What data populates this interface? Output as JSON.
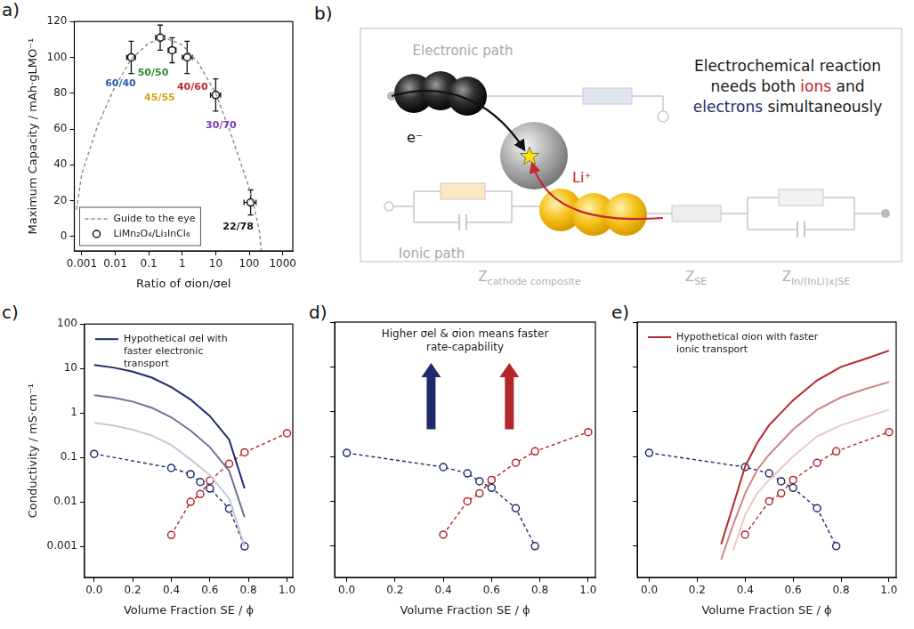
{
  "chart_data": [
    {
      "panel_label": "a)",
      "type": "scatter",
      "log": "x",
      "x_label": "Ratio of σion/σel",
      "y_label": "Maximum Capacity / mAh·gLMO⁻¹",
      "xlim": [
        0.0006,
        2000
      ],
      "xticks": [
        0.001,
        0.01,
        0.1,
        1,
        10,
        100,
        1000
      ],
      "ylim": [
        -8,
        120
      ],
      "yticks": [
        0,
        20,
        40,
        60,
        80,
        100,
        120
      ],
      "grid": false,
      "legend": "lower left",
      "series": [
        {
          "name": "Guide to the eye",
          "type": "line",
          "line_style": "dashed",
          "color": "#8a8a8a",
          "x": [
            0.0007,
            0.001,
            0.003,
            0.01,
            0.03,
            0.1,
            0.3,
            1,
            3,
            10,
            30,
            100,
            150,
            200,
            230
          ],
          "values": [
            15,
            35,
            62,
            84,
            99,
            108,
            111,
            107,
            97,
            80,
            56,
            27,
            14,
            3,
            -8
          ]
        },
        {
          "name": "LiMn₂O₄/Li₃InCl₆",
          "type": "scatter",
          "marker": "open circle",
          "color": "#111111",
          "x": [
            0.03,
            0.22,
            0.5,
            1.4,
            10,
            110
          ],
          "values": [
            100,
            111,
            104,
            100,
            79,
            19
          ],
          "y_error": [
            9,
            7,
            7,
            9,
            9,
            7
          ],
          "x_error_low": [
            0.022,
            0.16,
            0.38,
            1.0,
            7,
            70
          ],
          "x_error_high": [
            0.04,
            0.3,
            0.65,
            2,
            14,
            160
          ],
          "point_labels": [
            "60/40",
            "50/50",
            "45/55",
            "40/60",
            "30/70",
            "22/78"
          ],
          "label_colors": [
            "#2e5fb5",
            "#2e8b2e",
            "#d4a017",
            "#c0282d",
            "#7b3bb5",
            "#111111"
          ]
        }
      ]
    },
    {
      "panel_label": "c)",
      "type": "line",
      "log": "y",
      "x_label": "Volume Fraction SE / ϕ",
      "y_label": "Conductivity / mS·cm⁻¹",
      "xlim": [
        -0.05,
        1.03
      ],
      "xticks": [
        {
          "value": 0,
          "label": "0.0"
        },
        0.2,
        0.4,
        0.6,
        0.8,
        {
          "value": 1,
          "label": "1.0"
        }
      ],
      "ylim": [
        0.0002,
        100
      ],
      "yticks": [
        0.001,
        0.01,
        0.1,
        1,
        10,
        100
      ],
      "grid": false,
      "legend": "upper left",
      "series": [
        {
          "color": "#c5c7d9",
          "line_style": "solid",
          "x": [
            0,
            0.1,
            0.2,
            0.3,
            0.4,
            0.5,
            0.6,
            0.7,
            0.78
          ],
          "values": [
            0.6,
            0.52,
            0.42,
            0.31,
            0.19,
            0.09,
            0.04,
            0.012,
            0.001
          ]
        },
        {
          "color": "#6e7196",
          "line_style": "solid",
          "x": [
            0,
            0.1,
            0.2,
            0.3,
            0.4,
            0.5,
            0.6,
            0.7,
            0.78
          ],
          "values": [
            2.5,
            2.2,
            1.8,
            1.3,
            0.8,
            0.4,
            0.17,
            0.05,
            0.0045
          ]
        },
        {
          "name": "Hypothetical σel with faster electronic transport",
          "color": "#1f2a6b",
          "line_style": "solid",
          "x": [
            0,
            0.1,
            0.2,
            0.3,
            0.4,
            0.5,
            0.6,
            0.7,
            0.78
          ],
          "values": [
            12,
            10.5,
            8.5,
            6.2,
            3.8,
            2.0,
            0.85,
            0.25,
            0.02
          ]
        },
        {
          "color": "#1f2a6b",
          "marker": "open circle",
          "line_style": "dashed",
          "x": [
            0,
            0.4,
            0.5,
            0.55,
            0.6,
            0.7,
            0.78
          ],
          "values": [
            0.12,
            0.058,
            0.042,
            0.028,
            0.02,
            0.007,
            0.001
          ]
        },
        {
          "color": "#b3262b",
          "marker": "open circle",
          "line_style": "dashed",
          "x": [
            0.4,
            0.5,
            0.55,
            0.6,
            0.7,
            0.78,
            1.0
          ],
          "values": [
            0.0018,
            0.01,
            0.015,
            0.03,
            0.072,
            0.13,
            0.35
          ]
        }
      ]
    },
    {
      "panel_label": "d)",
      "type": "line",
      "log": "y",
      "tick_labels": "x",
      "x_label": "Volume Fraction SE / ϕ",
      "annotation": "Higher σel & σion means faster rate-capability",
      "xlim": [
        -0.05,
        1.03
      ],
      "xticks": [
        {
          "value": 0,
          "label": "0.0"
        },
        0.2,
        0.4,
        0.6,
        0.8,
        {
          "value": 1,
          "label": "1.0"
        }
      ],
      "ylim": [
        0.0002,
        100
      ],
      "yticks": [
        0.001,
        0.01,
        0.1,
        1,
        10,
        100
      ],
      "grid": false,
      "series": [
        {
          "color": "#1f2a6b",
          "marker": "open circle",
          "line_style": "dashed",
          "x": [
            0,
            0.4,
            0.5,
            0.55,
            0.6,
            0.7,
            0.78
          ],
          "values": [
            0.12,
            0.058,
            0.042,
            0.028,
            0.02,
            0.007,
            0.001
          ]
        },
        {
          "color": "#b3262b",
          "marker": "open circle",
          "line_style": "dashed",
          "x": [
            0.4,
            0.5,
            0.55,
            0.6,
            0.7,
            0.78,
            1.0
          ],
          "values": [
            0.0018,
            0.01,
            0.015,
            0.03,
            0.072,
            0.13,
            0.35
          ]
        }
      ]
    },
    {
      "panel_label": "e)",
      "type": "line",
      "log": "y",
      "tick_labels": "x",
      "x_label": "Volume Fraction SE / ϕ",
      "xlim": [
        -0.05,
        1.03
      ],
      "xticks": [
        {
          "value": 0,
          "label": "0.0"
        },
        0.2,
        0.4,
        0.6,
        0.8,
        {
          "value": 1,
          "label": "1.0"
        }
      ],
      "ylim": [
        0.0002,
        100
      ],
      "yticks": [
        0.001,
        0.01,
        0.1,
        1,
        10,
        100
      ],
      "grid": false,
      "legend": "upper left",
      "series": [
        {
          "color": "#ebc7c8",
          "line_style": "solid",
          "x": [
            0.3,
            0.35,
            0.4,
            0.45,
            0.5,
            0.6,
            0.7,
            0.8,
            0.9,
            1.0
          ],
          "values": [
            null,
            0.0008,
            0.005,
            0.015,
            0.03,
            0.1,
            0.28,
            0.5,
            0.75,
            1.1
          ]
        },
        {
          "color": "#cf8587",
          "line_style": "solid",
          "x": [
            0.3,
            0.35,
            0.4,
            0.45,
            0.5,
            0.6,
            0.7,
            0.8,
            0.9,
            1.0
          ],
          "values": [
            0.0005,
            0.003,
            0.015,
            0.05,
            0.11,
            0.4,
            1.1,
            2.1,
            3.2,
            4.6
          ]
        },
        {
          "name": "Hypothetical σion with faster ionic transport",
          "color": "#b3262b",
          "line_style": "solid",
          "x": [
            0.3,
            0.35,
            0.4,
            0.45,
            0.5,
            0.6,
            0.7,
            0.8,
            0.9,
            1.0
          ],
          "values": [
            0.0011,
            0.008,
            0.06,
            0.2,
            0.5,
            1.8,
            5,
            10,
            15,
            23
          ]
        },
        {
          "color": "#1f2a6b",
          "marker": "open circle",
          "line_style": "dashed",
          "x": [
            0,
            0.4,
            0.5,
            0.55,
            0.6,
            0.7,
            0.78
          ],
          "values": [
            0.12,
            0.058,
            0.042,
            0.028,
            0.02,
            0.007,
            0.001
          ]
        },
        {
          "color": "#b3262b",
          "marker": "open circle",
          "line_style": "dashed",
          "x": [
            0.4,
            0.5,
            0.55,
            0.6,
            0.7,
            0.78,
            1.0
          ],
          "values": [
            0.0018,
            0.01,
            0.015,
            0.03,
            0.072,
            0.13,
            0.35
          ]
        }
      ]
    }
  ],
  "diagram": {
    "panel_label": "b)",
    "electronic_path": "Electronic path",
    "ionic_path": "Ionic path",
    "electron": "e⁻",
    "ion": "Li⁺",
    "message": [
      [
        {
          "text": "Electrochemical reaction"
        }
      ],
      [
        {
          "text": "needs both "
        },
        {
          "text": "ions",
          "color": "#c0282d"
        },
        {
          "text": " and"
        }
      ],
      [
        {
          "text": "electrons",
          "color": "#1f2a6b"
        },
        {
          "text": " simultaneously"
        }
      ]
    ],
    "impedances": [
      {
        "symbol": "Z",
        "subscript": "cathode composite"
      },
      {
        "symbol": "Z",
        "subscript": "SE"
      },
      {
        "symbol": "Z",
        "subscript": "In/(InLi)x|SE"
      }
    ]
  }
}
